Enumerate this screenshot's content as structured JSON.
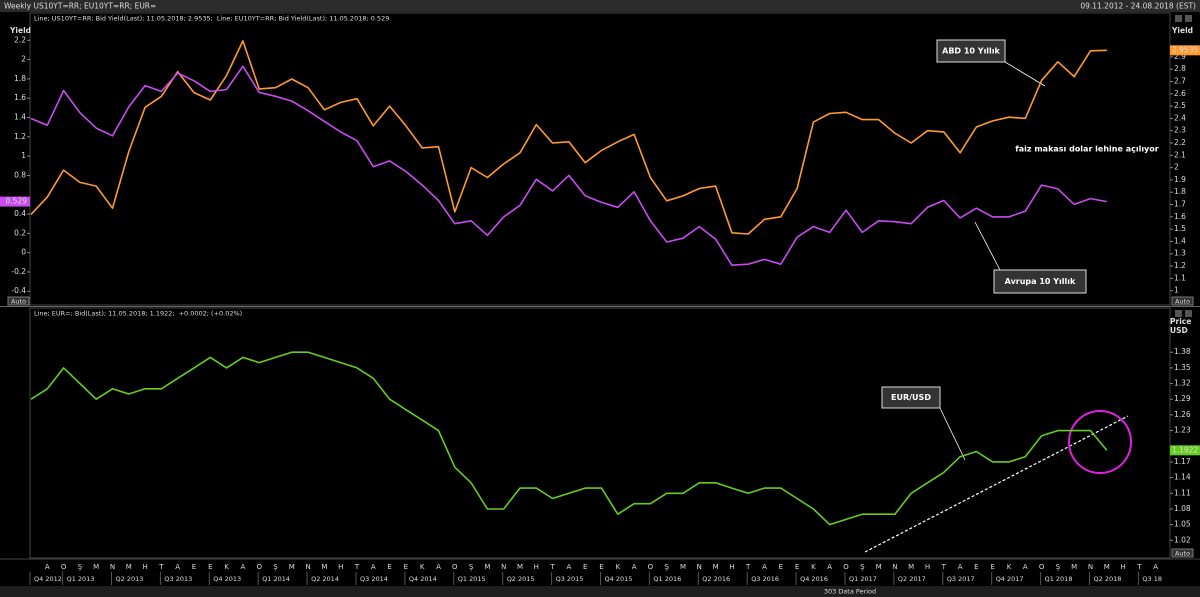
{
  "header": {
    "title": "Weekly US10YT=RR; EU10YT=RR; EUR=",
    "range": "09.11.2012 - 24.08.2018 (EST)"
  },
  "footer": "303 Data Period",
  "auto_label": "Auto",
  "chart_data": [
    {
      "type": "line",
      "y_title": "Yield",
      "y2_title": "Yield",
      "ylim": [
        -0.47,
        2.41
      ],
      "yticks": [
        2.2,
        2,
        1.8,
        1.6,
        1.4,
        1.2,
        1,
        0.8,
        0.4,
        0.2,
        0,
        -0.2,
        -0.4
      ],
      "y2lim": [
        0.94,
        3.2
      ],
      "y2ticks": [
        2.9,
        2.8,
        2.7,
        2.6,
        2.5,
        2.4,
        2.3,
        2.2,
        2.1,
        2,
        1.9,
        1.8,
        1.7,
        1.6,
        1.5,
        1.4,
        1.3,
        1.2,
        1.1,
        1
      ],
      "series": [
        {
          "name": "Line; US10YT=RR; Bid Yield(Last); 11.05.2018; 2.9535;",
          "color": "#ff9a2e",
          "axis": "y2",
          "last_label": "2.9535",
          "values": [
            1.62,
            1.76,
            1.98,
            1.88,
            1.85,
            1.67,
            2.13,
            2.49,
            2.58,
            2.78,
            2.61,
            2.55,
            2.75,
            3.03,
            2.64,
            2.65,
            2.72,
            2.65,
            2.47,
            2.53,
            2.56,
            2.34,
            2.5,
            2.34,
            2.16,
            2.17,
            1.64,
            2.0,
            1.92,
            2.03,
            2.12,
            2.35,
            2.2,
            2.21,
            2.04,
            2.14,
            2.21,
            2.27,
            1.92,
            1.73,
            1.77,
            1.83,
            1.85,
            1.47,
            1.46,
            1.58,
            1.6,
            1.83,
            2.37,
            2.44,
            2.45,
            2.39,
            2.39,
            2.28,
            2.2,
            2.3,
            2.29,
            2.12,
            2.33,
            2.38,
            2.41,
            2.4,
            2.71,
            2.86,
            2.74,
            2.95,
            2.9535,
            null,
            null,
            null
          ]
        },
        {
          "name": "Line; EU10YT=RR; Bid Yield(Last); 11.05.2018; 0.529",
          "color": "#c84cf0",
          "axis": "y",
          "last_label": "0.529",
          "values": [
            1.39,
            1.32,
            1.68,
            1.45,
            1.29,
            1.21,
            1.51,
            1.73,
            1.67,
            1.86,
            1.78,
            1.67,
            1.69,
            1.93,
            1.66,
            1.62,
            1.57,
            1.47,
            1.36,
            1.25,
            1.16,
            0.89,
            0.95,
            0.84,
            0.7,
            0.54,
            0.3,
            0.33,
            0.18,
            0.37,
            0.49,
            0.76,
            0.64,
            0.8,
            0.59,
            0.52,
            0.47,
            0.63,
            0.33,
            0.11,
            0.15,
            0.27,
            0.14,
            -0.13,
            -0.12,
            -0.07,
            -0.12,
            0.16,
            0.27,
            0.21,
            0.44,
            0.21,
            0.33,
            0.32,
            0.3,
            0.47,
            0.54,
            0.36,
            0.46,
            0.37,
            0.37,
            0.43,
            0.7,
            0.66,
            0.5,
            0.56,
            0.529,
            null,
            null,
            null
          ]
        }
      ],
      "annotations": [
        "ABD 10 Yıllık",
        "faiz makası dolar lehine açılıyor",
        "Avrupa 10 Yıllık"
      ]
    },
    {
      "type": "line",
      "y2_title": "Price USD",
      "y2lim": [
        0.99,
        1.455
      ],
      "y2ticks": [
        1.38,
        1.35,
        1.32,
        1.29,
        1.26,
        1.23,
        1.17,
        1.14,
        1.11,
        1.08,
        1.05,
        1.02
      ],
      "categories": [
        null,
        "A",
        "O",
        "Ş",
        "M",
        "N",
        "M",
        "H",
        "T",
        "A",
        "E",
        "E",
        "K",
        "A",
        "O",
        "Ş",
        "M",
        "N",
        "M",
        "H",
        "T",
        "A",
        "E",
        "E",
        "K",
        "A",
        "O",
        "Ş",
        "M",
        "N",
        "M",
        "H",
        "T",
        "A",
        "E",
        "E",
        "K",
        "A",
        "O",
        "Ş",
        "M",
        "N",
        "M",
        "H",
        "T",
        "A",
        "E",
        "E",
        "K",
        "A",
        "O",
        "Ş",
        "M",
        "N",
        "M",
        "H",
        "T",
        "A",
        "E",
        "E",
        "K",
        "A",
        "O",
        "Ş",
        "M",
        "N",
        "M",
        "H",
        "T",
        "A"
      ],
      "quarter_labels": [
        "Q4 2012",
        null,
        "Q1 2013",
        null,
        null,
        "Q2 2013",
        null,
        null,
        "Q3 2013",
        null,
        null,
        "Q4 2013",
        null,
        null,
        "Q1 2014",
        null,
        null,
        "Q2 2014",
        null,
        null,
        "Q3 2014",
        null,
        null,
        "Q4 2014",
        null,
        null,
        "Q1 2015",
        null,
        null,
        "Q2 2015",
        null,
        null,
        "Q3 2015",
        null,
        null,
        "Q4 2015",
        null,
        null,
        "Q1 2016",
        null,
        null,
        "Q2 2016",
        null,
        null,
        "Q3 2016",
        null,
        null,
        "Q4 2016",
        null,
        null,
        "Q1 2017",
        null,
        null,
        "Q2 2017",
        null,
        null,
        "Q3 2017",
        null,
        null,
        "Q4 2017",
        null,
        null,
        "Q1 2018",
        null,
        null,
        "Q2 2018",
        null,
        null,
        "Q3 18",
        null
      ],
      "series": [
        {
          "name": "Line; EUR=; Bid(Last); 11.05.2018; 1.1922;",
          "change": "+0.0002; (+0.02%)",
          "color": "#66cc22",
          "axis": "y2",
          "last_label": "1.1922",
          "values": [
            1.29,
            1.31,
            1.35,
            1.32,
            1.29,
            1.31,
            1.3,
            1.31,
            1.31,
            1.33,
            1.35,
            1.37,
            1.35,
            1.37,
            1.36,
            1.37,
            1.38,
            1.38,
            1.37,
            1.36,
            1.35,
            1.33,
            1.29,
            1.27,
            1.25,
            1.23,
            1.16,
            1.13,
            1.08,
            1.08,
            1.12,
            1.12,
            1.1,
            1.11,
            1.12,
            1.12,
            1.07,
            1.09,
            1.09,
            1.11,
            1.11,
            1.13,
            1.13,
            1.12,
            1.11,
            1.12,
            1.12,
            1.1,
            1.08,
            1.05,
            1.06,
            1.07,
            1.07,
            1.07,
            1.11,
            1.13,
            1.15,
            1.18,
            1.19,
            1.17,
            1.17,
            1.18,
            1.22,
            1.23,
            1.23,
            1.23,
            1.1922,
            null,
            null,
            null
          ]
        }
      ],
      "annotations": [
        "EUR/USD"
      ]
    }
  ]
}
